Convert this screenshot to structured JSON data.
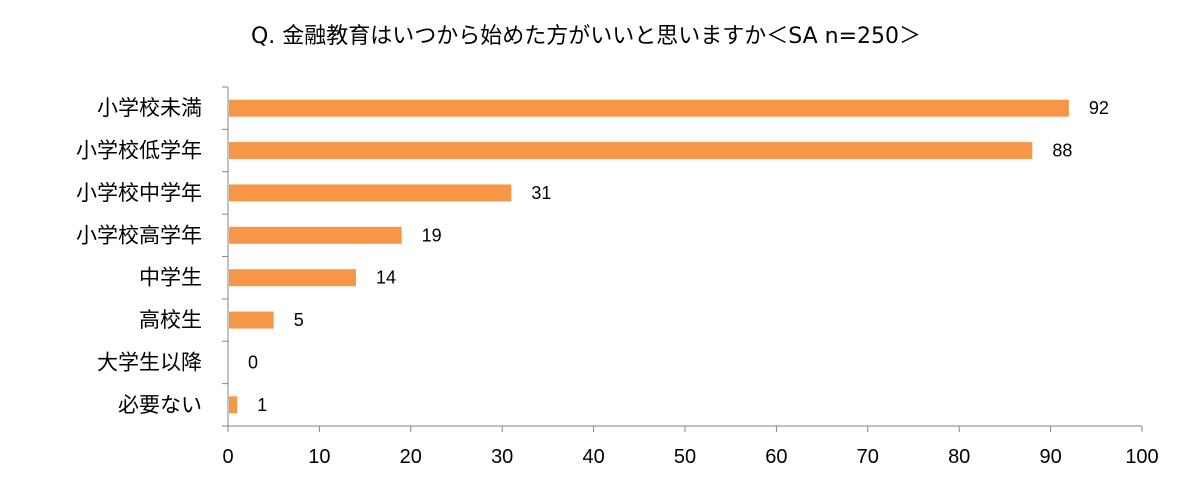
{
  "chart_data": {
    "type": "bar",
    "orientation": "horizontal",
    "title": "Q. 金融教育はいつから始めた方がいいと思いますか＜SA n=250＞",
    "categories": [
      "小学校未満",
      "小学校低学年",
      "小学校中学年",
      "小学校高学年",
      "中学生",
      "高校生",
      "大学生以降",
      "必要ない"
    ],
    "values": [
      92,
      88,
      31,
      19,
      14,
      5,
      0,
      1
    ],
    "xlim": [
      0,
      100
    ],
    "xticks": [
      "0",
      "10",
      "20",
      "30",
      "40",
      "50",
      "60",
      "70",
      "80",
      "90",
      "100"
    ],
    "xlabel": "",
    "ylabel": "",
    "grid": false,
    "legend": "none",
    "data_labels": true,
    "colors": {
      "bar": "#F79646",
      "axis": "#868686",
      "text": "#000000"
    }
  }
}
